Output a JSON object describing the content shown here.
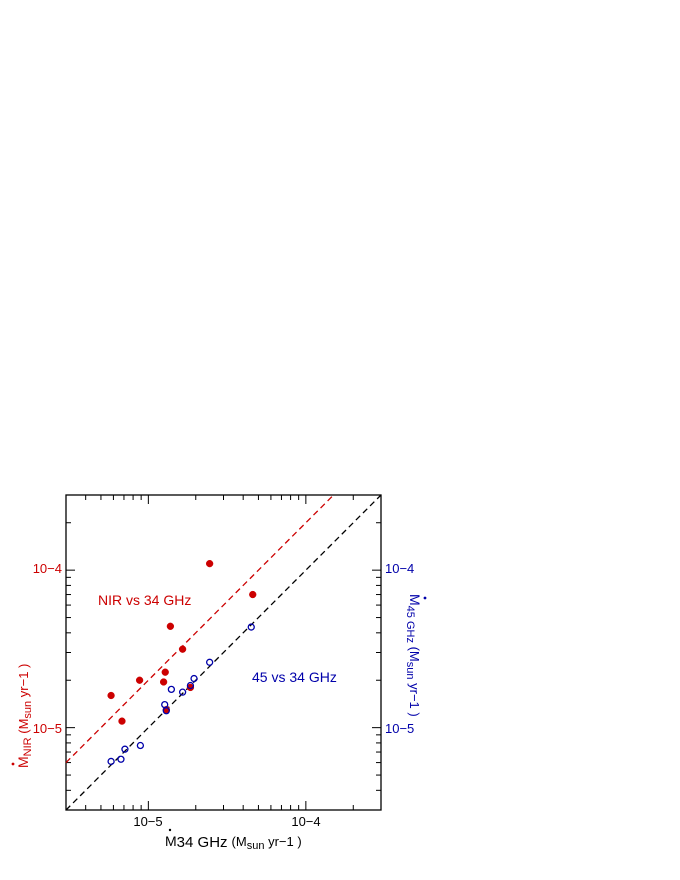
{
  "chart_data": {
    "type": "scatter",
    "x_axis": {
      "scale": "log",
      "range": [
        3e-06,
        0.0003
      ],
      "tick_labels": [
        "10−5",
        "10−4"
      ],
      "label_prefix": "M",
      "label_sub": "34 GHz",
      "label_units": "(M",
      "label_units_sub": "sun",
      "label_units_tail": " yr−1 )"
    },
    "y_axis_left": {
      "scale": "log",
      "range": [
        3e-06,
        0.0003
      ],
      "tick_labels": [
        "10−5",
        "10−4"
      ],
      "label_prefix": "M",
      "label_sub": "NIR",
      "label_units": " (M",
      "label_units_sub": "sun",
      "label_units_tail": " yr−1 )",
      "color": "#cc0000"
    },
    "y_axis_right": {
      "scale": "log",
      "range": [
        3e-06,
        0.0003
      ],
      "tick_labels": [
        "10−5",
        "10−4"
      ],
      "label_prefix": "M",
      "label_sub": "45 GHz",
      "label_units": " (M",
      "label_units_sub": "sun",
      "label_units_tail": " yr−1 )",
      "color": "#0000aa"
    },
    "series": [
      {
        "name": "NIR vs 34 GHz",
        "color": "#cc0000",
        "marker": "filled-circle",
        "points": [
          [
            5.8e-06,
            1.6e-05
          ],
          [
            6.8e-06,
            1.1e-05
          ],
          [
            8.8e-06,
            2e-05
          ],
          [
            1.25e-05,
            1.95e-05
          ],
          [
            1.28e-05,
            2.25e-05
          ],
          [
            1.3e-05,
            1.3e-05
          ],
          [
            1.38e-05,
            4.4e-05
          ],
          [
            1.65e-05,
            3.15e-05
          ],
          [
            1.85e-05,
            1.8e-05
          ],
          [
            2.45e-05,
            0.00011
          ],
          [
            4.6e-05,
            7e-05
          ]
        ],
        "fit": {
          "type": "dashed-line",
          "factor": 2.0
        }
      },
      {
        "name": "45 vs 34 GHz",
        "color": "#0000aa",
        "marker": "open-circle",
        "points": [
          [
            5.8e-06,
            6.1e-06
          ],
          [
            6.7e-06,
            6.3e-06
          ],
          [
            7.1e-06,
            7.3e-06
          ],
          [
            8.9e-06,
            7.7e-06
          ],
          [
            1.27e-05,
            1.4e-05
          ],
          [
            1.3e-05,
            1.28e-05
          ],
          [
            1.4e-05,
            1.75e-05
          ],
          [
            1.65e-05,
            1.68e-05
          ],
          [
            1.85e-05,
            1.85e-05
          ],
          [
            1.95e-05,
            2.05e-05
          ],
          [
            2.45e-05,
            2.6e-05
          ],
          [
            4.5e-05,
            4.35e-05
          ]
        ],
        "fit": {
          "type": "dashed-line",
          "factor": 1.0,
          "color": "#000000"
        }
      }
    ],
    "annotations": [
      {
        "text": "NIR vs 34 GHz",
        "color": "#cc0000"
      },
      {
        "text": "45 vs 34 GHz",
        "color": "#0000aa"
      }
    ]
  }
}
